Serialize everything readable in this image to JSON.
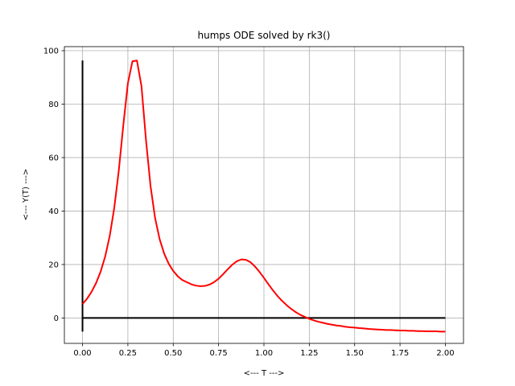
{
  "chart_data": {
    "type": "line",
    "title": "humps ODE solved by rk3()",
    "xlabel": "<--- T --->",
    "ylabel": "<--- Y(T) --->",
    "xlim": [
      -0.1,
      2.1
    ],
    "ylim": [
      -9.5,
      101.5
    ],
    "xticks": [
      0.0,
      0.25,
      0.5,
      0.75,
      1.0,
      1.25,
      1.5,
      1.75,
      2.0
    ],
    "xtick_labels": [
      "0.00",
      "0.25",
      "0.50",
      "0.75",
      "1.00",
      "1.25",
      "1.50",
      "1.75",
      "2.00"
    ],
    "yticks": [
      0,
      20,
      40,
      60,
      80,
      100
    ],
    "ytick_labels": [
      "0",
      "20",
      "40",
      "60",
      "80",
      "100"
    ],
    "grid": true,
    "legend": "none",
    "series": [
      {
        "color": "#ff0000",
        "x": [
          0.0,
          0.025,
          0.05,
          0.075,
          0.1,
          0.125,
          0.15,
          0.175,
          0.2,
          0.225,
          0.25,
          0.275,
          0.3,
          0.325,
          0.35,
          0.375,
          0.4,
          0.425,
          0.45,
          0.475,
          0.5,
          0.525,
          0.55,
          0.575,
          0.6,
          0.625,
          0.65,
          0.675,
          0.7,
          0.725,
          0.75,
          0.775,
          0.8,
          0.825,
          0.85,
          0.875,
          0.9,
          0.925,
          0.95,
          0.975,
          1.0,
          1.025,
          1.05,
          1.075,
          1.1,
          1.125,
          1.15,
          1.175,
          1.2,
          1.225,
          1.25,
          1.275,
          1.3,
          1.325,
          1.35,
          1.375,
          1.4,
          1.425,
          1.45,
          1.475,
          1.5,
          1.525,
          1.55,
          1.575,
          1.6,
          1.625,
          1.65,
          1.675,
          1.7,
          1.725,
          1.75,
          1.775,
          1.8,
          1.825,
          1.85,
          1.875,
          1.9,
          1.925,
          1.95,
          1.975,
          2.0
        ],
        "y": [
          5.2,
          7.2,
          9.8,
          13.1,
          17.4,
          23.0,
          30.7,
          41.2,
          55.2,
          72.2,
          87.8,
          96.0,
          96.3,
          86.7,
          66.5,
          49.3,
          37.4,
          29.5,
          24.1,
          20.3,
          17.6,
          15.6,
          14.2,
          13.4,
          12.6,
          12.1,
          11.9,
          12.0,
          12.5,
          13.4,
          14.7,
          16.4,
          18.2,
          19.9,
          21.2,
          21.9,
          21.8,
          20.9,
          19.3,
          17.3,
          15.0,
          12.6,
          10.3,
          8.2,
          6.4,
          4.8,
          3.4,
          2.2,
          1.2,
          0.4,
          -0.3,
          -0.9,
          -1.4,
          -1.8,
          -2.2,
          -2.5,
          -2.8,
          -3.0,
          -3.3,
          -3.5,
          -3.6,
          -3.8,
          -3.9,
          -4.1,
          -4.2,
          -4.3,
          -4.4,
          -4.5,
          -4.5,
          -4.6,
          -4.7,
          -4.7,
          -4.8,
          -4.8,
          -4.9,
          -4.9,
          -5.0,
          -5.0,
          -5.0,
          -5.1,
          -5.1
        ]
      }
    ],
    "reference_lines": {
      "horizontal": {
        "y": 0,
        "x_range": [
          0.0,
          2.0
        ],
        "color": "#000000"
      },
      "vertical": {
        "x": 0,
        "y_range": [
          -5.1,
          96.3
        ],
        "color": "#000000"
      }
    }
  },
  "colors": {
    "grid": "#b0b0b0",
    "axes": "#000000",
    "background": "#ffffff"
  }
}
